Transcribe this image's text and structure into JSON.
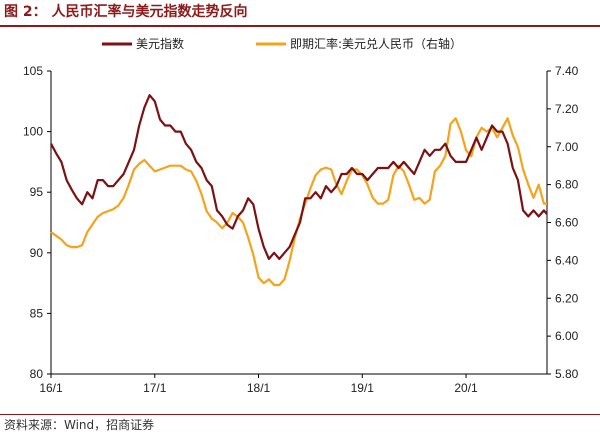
{
  "header": {
    "title": "图 2： 人民币汇率与美元指数走势反向"
  },
  "footer": {
    "source": "资料来源：Wind，招商证券"
  },
  "colors": {
    "usd": "#7b1113",
    "cny": "#f5a31a",
    "brand": "#8b1a1a"
  },
  "chart_data": {
    "type": "line",
    "title": "",
    "x_ticks": [
      "16/1",
      "17/1",
      "18/1",
      "19/1",
      "20/1"
    ],
    "y_left": {
      "ticks": [
        "80",
        "85",
        "90",
        "95",
        "100",
        "105"
      ],
      "lim": [
        80,
        105
      ]
    },
    "y_right": {
      "ticks": [
        "5.80",
        "6.00",
        "6.20",
        "6.40",
        "6.60",
        "6.80",
        "7.00",
        "7.20",
        "7.40"
      ],
      "lim": [
        5.8,
        7.4
      ]
    },
    "x_range_years": [
      2016.0,
      2020.78
    ],
    "legend": {
      "placement": "top",
      "entries": [
        "美元指数",
        "即期汇率:美元兑人民币（右轴）"
      ]
    },
    "series": [
      {
        "name": "美元指数",
        "axis": "left",
        "x": [
          2016.0,
          2016.05,
          2016.1,
          2016.15,
          2016.2,
          2016.25,
          2016.3,
          2016.35,
          2016.4,
          2016.45,
          2016.5,
          2016.55,
          2016.6,
          2016.65,
          2016.7,
          2016.75,
          2016.8,
          2016.85,
          2016.9,
          2016.95,
          2017.0,
          2017.05,
          2017.1,
          2017.15,
          2017.2,
          2017.25,
          2017.3,
          2017.35,
          2017.4,
          2017.45,
          2017.5,
          2017.55,
          2017.6,
          2017.65,
          2017.7,
          2017.75,
          2017.8,
          2017.85,
          2017.9,
          2017.95,
          2018.0,
          2018.05,
          2018.1,
          2018.15,
          2018.2,
          2018.25,
          2018.3,
          2018.35,
          2018.4,
          2018.45,
          2018.5,
          2018.55,
          2018.6,
          2018.65,
          2018.7,
          2018.75,
          2018.8,
          2018.85,
          2018.9,
          2018.95,
          2019.0,
          2019.05,
          2019.1,
          2019.15,
          2019.2,
          2019.25,
          2019.3,
          2019.35,
          2019.4,
          2019.45,
          2019.5,
          2019.55,
          2019.6,
          2019.65,
          2019.7,
          2019.75,
          2019.8,
          2019.85,
          2019.9,
          2019.95,
          2020.0,
          2020.05,
          2020.1,
          2020.15,
          2020.2,
          2020.25,
          2020.3,
          2020.35,
          2020.4,
          2020.45,
          2020.5,
          2020.55,
          2020.6,
          2020.65,
          2020.7,
          2020.75,
          2020.78
        ],
        "y": [
          99.0,
          98.2,
          97.5,
          96.0,
          95.2,
          94.5,
          94.0,
          95.0,
          94.5,
          96.0,
          96.0,
          95.5,
          95.5,
          96.0,
          96.5,
          97.5,
          98.5,
          100.5,
          102.0,
          103.0,
          102.5,
          101.0,
          100.5,
          100.5,
          100.0,
          100.0,
          99.0,
          98.5,
          97.5,
          97.0,
          96.0,
          95.5,
          93.5,
          93.0,
          92.3,
          92.0,
          93.0,
          93.5,
          94.5,
          94.0,
          92.0,
          90.5,
          89.5,
          90.0,
          89.5,
          90.0,
          90.5,
          91.5,
          92.5,
          94.5,
          94.5,
          95.0,
          94.5,
          95.5,
          95.0,
          95.5,
          96.5,
          96.5,
          97.0,
          96.5,
          96.5,
          96.0,
          96.5,
          97.0,
          97.0,
          97.0,
          97.5,
          97.0,
          97.5,
          97.0,
          96.5,
          97.5,
          98.5,
          98.0,
          98.5,
          98.5,
          99.0,
          98.0,
          97.5,
          97.5,
          97.5,
          98.5,
          99.5,
          98.5,
          99.5,
          100.5,
          100.0,
          100.0,
          99.0,
          97.0,
          96.0,
          93.5,
          93.0,
          93.5,
          93.0,
          93.5,
          93.2
        ]
      },
      {
        "name": "即期汇率:美元兑人民币（右轴）",
        "axis": "right",
        "x": [
          2016.0,
          2016.05,
          2016.1,
          2016.15,
          2016.2,
          2016.25,
          2016.3,
          2016.35,
          2016.4,
          2016.45,
          2016.5,
          2016.55,
          2016.6,
          2016.65,
          2016.7,
          2016.75,
          2016.8,
          2016.85,
          2016.9,
          2016.95,
          2017.0,
          2017.05,
          2017.1,
          2017.15,
          2017.2,
          2017.25,
          2017.3,
          2017.35,
          2017.4,
          2017.45,
          2017.5,
          2017.55,
          2017.6,
          2017.65,
          2017.7,
          2017.75,
          2017.8,
          2017.85,
          2017.9,
          2017.95,
          2018.0,
          2018.05,
          2018.1,
          2018.15,
          2018.2,
          2018.25,
          2018.3,
          2018.35,
          2018.4,
          2018.45,
          2018.5,
          2018.55,
          2018.6,
          2018.65,
          2018.7,
          2018.75,
          2018.8,
          2018.85,
          2018.9,
          2018.95,
          2019.0,
          2019.05,
          2019.1,
          2019.15,
          2019.2,
          2019.25,
          2019.3,
          2019.35,
          2019.4,
          2019.45,
          2019.5,
          2019.55,
          2019.6,
          2019.65,
          2019.7,
          2019.75,
          2019.8,
          2019.85,
          2019.9,
          2019.95,
          2020.0,
          2020.05,
          2020.1,
          2020.15,
          2020.2,
          2020.25,
          2020.3,
          2020.35,
          2020.4,
          2020.45,
          2020.5,
          2020.55,
          2020.6,
          2020.65,
          2020.7,
          2020.75,
          2020.78
        ],
        "y": [
          6.55,
          6.53,
          6.51,
          6.48,
          6.47,
          6.47,
          6.48,
          6.55,
          6.59,
          6.63,
          6.65,
          6.66,
          6.67,
          6.69,
          6.73,
          6.8,
          6.88,
          6.91,
          6.93,
          6.9,
          6.87,
          6.88,
          6.89,
          6.9,
          6.9,
          6.9,
          6.88,
          6.87,
          6.82,
          6.75,
          6.66,
          6.62,
          6.6,
          6.57,
          6.6,
          6.65,
          6.63,
          6.6,
          6.52,
          6.43,
          6.31,
          6.28,
          6.3,
          6.27,
          6.27,
          6.3,
          6.4,
          6.52,
          6.62,
          6.7,
          6.78,
          6.85,
          6.88,
          6.89,
          6.88,
          6.8,
          6.75,
          6.82,
          6.88,
          6.88,
          6.85,
          6.8,
          6.73,
          6.7,
          6.7,
          6.72,
          6.85,
          6.9,
          6.87,
          6.8,
          6.72,
          6.73,
          6.7,
          6.72,
          6.87,
          6.9,
          6.95,
          7.12,
          7.15,
          7.08,
          6.98,
          6.95,
          7.05,
          7.1,
          7.08,
          7.1,
          7.05,
          7.1,
          7.15,
          7.06,
          7.0,
          6.88,
          6.8,
          6.73,
          6.8,
          6.7,
          6.7
        ]
      }
    ]
  }
}
